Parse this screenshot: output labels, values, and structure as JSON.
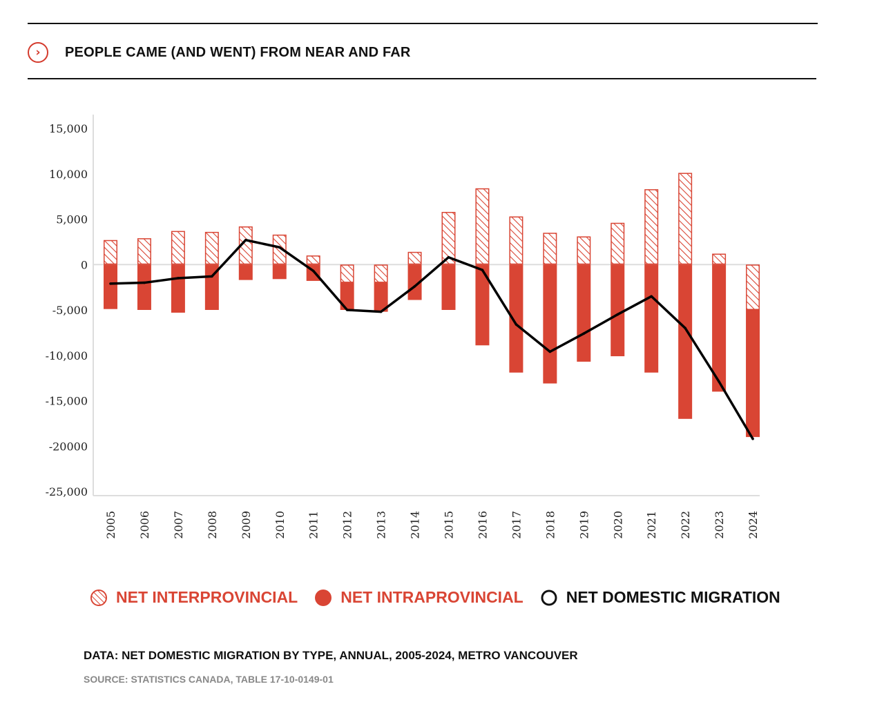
{
  "header": {
    "title": "PEOPLE CAME (AND WENT) FROM NEAR AND FAR",
    "chevron_icon": "chevron-right-circle-icon"
  },
  "colors": {
    "accent": "#d94534",
    "line": "#000000",
    "axis": "#dddddd"
  },
  "legend": {
    "interprovincial": "NET INTERPROVINCIAL",
    "intraprovincial": "NET INTRAPROVINCIAL",
    "domestic": "NET DOMESTIC MIGRATION"
  },
  "footer": {
    "data": "DATA: NET DOMESTIC MIGRATION BY TYPE, ANNUAL, 2005-2024, METRO VANCOUVER",
    "source": "SOURCE: STATISTICS CANADA, TABLE 17-10-0149-01"
  },
  "chart_data": {
    "type": "bar",
    "title": "PEOPLE CAME (AND WENT) FROM NEAR AND FAR",
    "xlabel": "",
    "ylabel": "",
    "ylim": [
      -25000,
      15000
    ],
    "yticks": [
      15000,
      10000,
      5000,
      0,
      -5000,
      -10000,
      -15000,
      -20000,
      -25000
    ],
    "ytick_labels": [
      "15,000",
      "10,000",
      "5,000",
      "0",
      "-5,000",
      "-10,000",
      "-15,000",
      "-20000",
      "-25,000"
    ],
    "categories": [
      "2005",
      "2006",
      "2007",
      "2008",
      "2009",
      "2010",
      "2011",
      "2012",
      "2013",
      "2014",
      "2015",
      "2016",
      "2017",
      "2018",
      "2019",
      "2020",
      "2021",
      "2022",
      "2023",
      "2024"
    ],
    "series": [
      {
        "name": "NET INTERPROVINCIAL",
        "style": "hatched",
        "values": [
          2700,
          2900,
          3700,
          3600,
          4200,
          3300,
          1000,
          -2000,
          -2000,
          1400,
          5800,
          8400,
          5300,
          3500,
          3100,
          4600,
          8300,
          10100,
          1200,
          -5000
        ]
      },
      {
        "name": "NET INTRAPROVINCIAL",
        "style": "solid",
        "values": [
          -4900,
          -5000,
          -5300,
          -5000,
          -1700,
          -1600,
          -1800,
          -3000,
          -3200,
          -3900,
          -5000,
          -8900,
          -11900,
          -13100,
          -10700,
          -10100,
          -11900,
          -17000,
          -14000,
          -14000
        ]
      },
      {
        "name": "NET DOMESTIC MIGRATION",
        "style": "line",
        "values": [
          -2100,
          -2000,
          -1500,
          -1300,
          2700,
          1900,
          -700,
          -5000,
          -5200,
          -2400,
          800,
          -600,
          -6600,
          -9600,
          -7600,
          -5500,
          -3500,
          -7000,
          -12900,
          -19200
        ]
      }
    ]
  }
}
